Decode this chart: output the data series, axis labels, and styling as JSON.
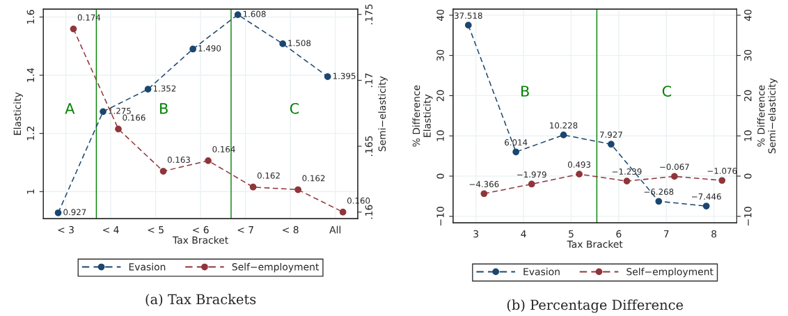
{
  "chart_data": [
    {
      "type": "line",
      "title": "(a) Tax Brackets",
      "xlabel": "Tax Bracket",
      "ylabel": "Elasticity",
      "y2label": "Semi−elasticity",
      "categories": [
        "< 3",
        "< 4",
        "< 5",
        "< 6",
        "< 7",
        "< 8",
        "All"
      ],
      "series": [
        {
          "name": "Evasion",
          "color": "#1a476f",
          "values": [
            0.927,
            1.275,
            1.352,
            1.49,
            1.608,
            1.508,
            1.395
          ],
          "value_labels": [
            "0.927",
            "1.275",
            "1.352",
            "1.490",
            "1.608",
            "1.508",
            "1.395"
          ]
        },
        {
          "name": "Self−employment",
          "color": "#90353b",
          "axis": "y2",
          "values": [
            0.1739,
            0.1663,
            0.1631,
            0.1639,
            0.1619,
            0.1617,
            0.16
          ],
          "value_labels": [
            "0.174",
            "0.166",
            "0.163",
            "0.164",
            "0.162",
            "0.162",
            "0.160"
          ]
        }
      ],
      "ylim": [
        0.907,
        1.627
      ],
      "yticks": [
        1,
        1.2,
        1.4,
        1.6
      ],
      "y2lim": [
        0.1595,
        0.1754
      ],
      "y2ticks": [
        {
          "value": 0.16,
          "label": ".16"
        },
        {
          "value": 0.165,
          "label": ".165"
        },
        {
          "value": 0.17,
          "label": ".17"
        },
        {
          "value": 0.175,
          "label": ".175"
        }
      ],
      "ref_lines": [
        {
          "axis": "x",
          "value": "< 4",
          "color": "#008000"
        },
        {
          "axis": "x",
          "value": "< 7",
          "color": "#008000"
        }
      ],
      "annotations": [
        "A",
        "B",
        "C"
      ],
      "grid": true,
      "legend": "bottom",
      "marker": "circle",
      "line_style": "dashed"
    },
    {
      "type": "line",
      "title": "(b) Percentage Difference",
      "xlabel": "Tax Bracket",
      "ylabel": "% Difference\nElasticity",
      "y2label": "% Difference\nSemi−elasticity",
      "series": [
        {
          "name": "Evasion",
          "color": "#1a476f",
          "x": [
            2.84,
            3.84,
            4.84,
            5.84,
            6.84,
            7.84
          ],
          "values": [
            37.518,
            6.014,
            10.228,
            7.927,
            -6.268,
            -7.446
          ],
          "value_labels": [
            "37.518",
            "6.014",
            "10.228",
            "7.927",
            "−6.268",
            "−7.446"
          ]
        },
        {
          "name": "Self−employment",
          "color": "#90353b",
          "axis": "y2",
          "x": [
            3.17,
            4.17,
            5.17,
            6.17,
            7.17,
            8.17
          ],
          "values": [
            -4.366,
            -1.979,
            0.493,
            -1.239,
            -0.067,
            -1.076
          ],
          "value_labels": [
            "−4.366",
            "−1.979",
            "0.493",
            "−1.239",
            "−0.067",
            "−1.076"
          ]
        }
      ],
      "xlim": [
        2.52,
        8.48
      ],
      "xticks": [
        3,
        4,
        5,
        6,
        7,
        8
      ],
      "ylim": [
        -11.6,
        41.5
      ],
      "yticks": [
        {
          "value": -10,
          "label": "−10"
        },
        0,
        10,
        20,
        30,
        40
      ],
      "y2lim": [
        -11.6,
        41.5
      ],
      "y2ticks": [
        {
          "value": -10,
          "label": "−10"
        },
        0,
        10,
        20,
        30,
        40
      ],
      "ref_lines": [
        {
          "axis": "x",
          "value": 5.54,
          "color": "#008000"
        }
      ],
      "annotations": [
        "B",
        "C"
      ],
      "grid": true,
      "legend": "bottom",
      "marker": "circle",
      "line_style": "dashed"
    }
  ]
}
